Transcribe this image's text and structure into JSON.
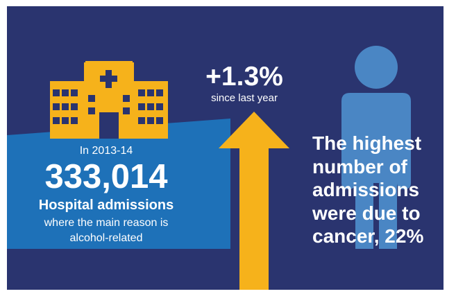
{
  "stats": {
    "period_label": "In 2013-14",
    "admissions_count": "333,014",
    "admissions_label": "Hospital admissions",
    "admissions_desc_line1": "where the main reason is",
    "admissions_desc_line2": "alcohol-related"
  },
  "change": {
    "percent": "+1.3%",
    "since_label": "since last year"
  },
  "highlight": {
    "line1": "The highest",
    "line2": "number of",
    "line3": "admissions",
    "line4": "were due to",
    "line5": "cancer, 22%"
  },
  "icons": {
    "hospital": "hospital-building-icon",
    "arrow": "up-arrow-icon",
    "person": "person-icon"
  },
  "colors": {
    "background": "#2a346f",
    "banner": "#1e71b8",
    "accent_yellow": "#f6b21b",
    "person_blue": "#4a86c4",
    "window_dark": "#2a346f",
    "text": "#ffffff"
  }
}
